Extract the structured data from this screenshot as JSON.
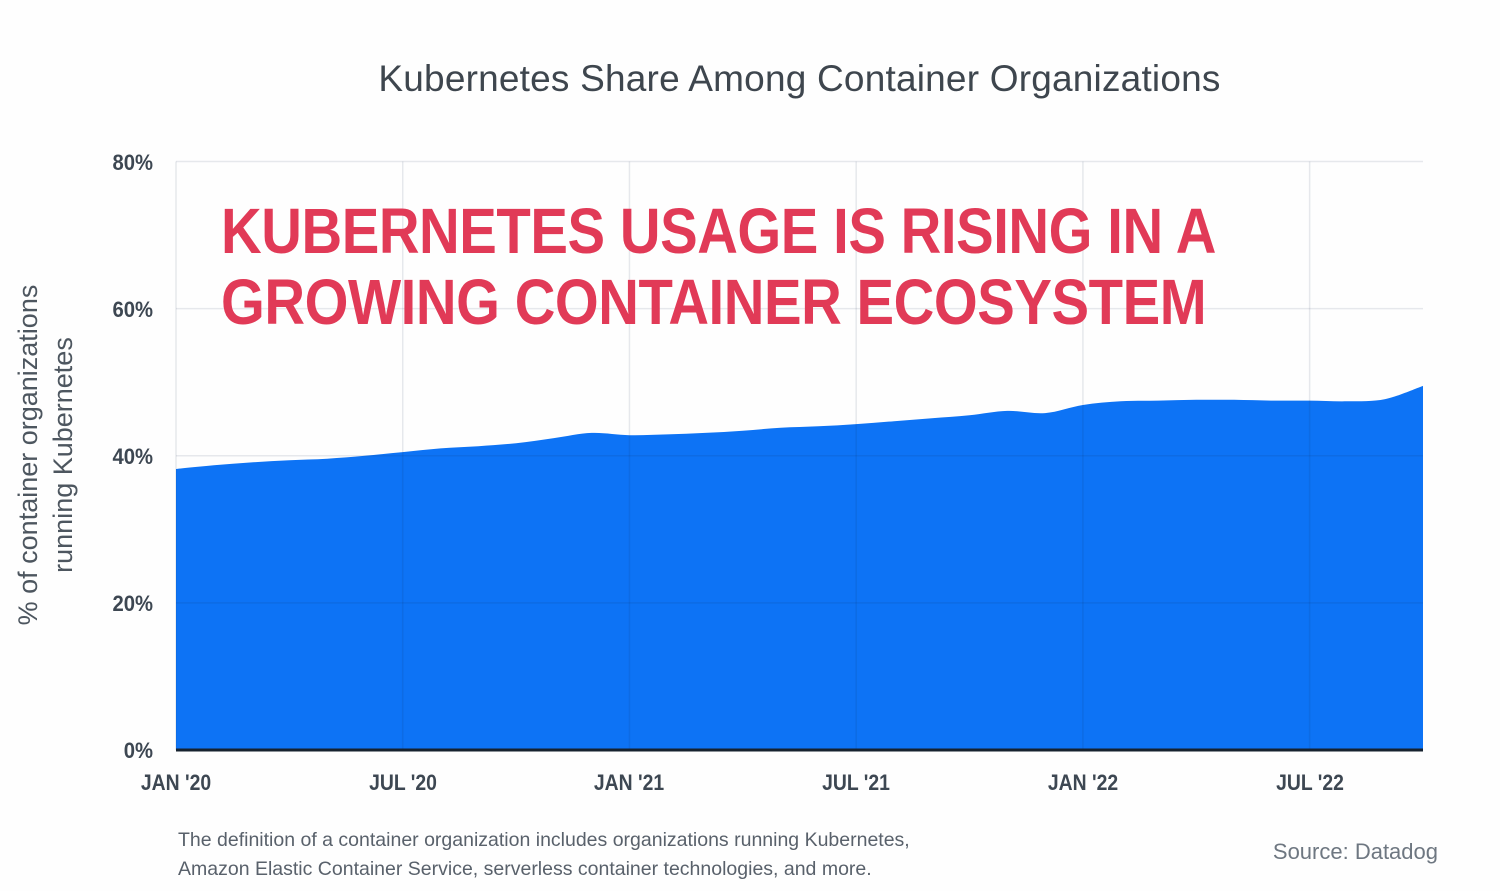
{
  "title": "Kubernetes Share Among Container Organizations",
  "overlay": {
    "line1": "KUBERNETES USAGE IS RISING IN A",
    "line2": "GROWING CONTAINER ECOSYSTEM",
    "color": "#e13a57"
  },
  "footnote": {
    "line1": "The definition of a container organization includes organizations running Kubernetes,",
    "line2": "Amazon Elastic Container Service, serverless container technologies, and more."
  },
  "source": "Source: Datadog",
  "chart_data": {
    "type": "area",
    "title": "Kubernetes Share Among Container Organizations",
    "ylabel_line1": "% of container organizations",
    "ylabel_line2": "running Kubernetes",
    "xlabel": "",
    "ylim": [
      0,
      80
    ],
    "grid": true,
    "legend": "none",
    "area_color": "#0d73f5",
    "grid_color": "rgba(23,43,77,0.10)",
    "baseline_color": "#16222f",
    "y_ticks": [
      {
        "label": "0%",
        "value": 0
      },
      {
        "label": "20%",
        "value": 20
      },
      {
        "label": "40%",
        "value": 40
      },
      {
        "label": "60%",
        "value": 60
      },
      {
        "label": "80%",
        "value": 80
      }
    ],
    "x_ticks": [
      {
        "label": "JAN '20",
        "index": 0
      },
      {
        "label": "JUL '20",
        "index": 6
      },
      {
        "label": "JAN '21",
        "index": 12
      },
      {
        "label": "JUL '21",
        "index": 18
      },
      {
        "label": "JAN '22",
        "index": 24
      },
      {
        "label": "JUL '22",
        "index": 30
      }
    ],
    "x": [
      "Jan '20",
      "Feb '20",
      "Mar '20",
      "Apr '20",
      "May '20",
      "Jun '20",
      "Jul '20",
      "Aug '20",
      "Sep '20",
      "Oct '20",
      "Nov '20",
      "Dec '20",
      "Jan '21",
      "Feb '21",
      "Mar '21",
      "Apr '21",
      "May '21",
      "Jun '21",
      "Jul '21",
      "Aug '21",
      "Sep '21",
      "Oct '21",
      "Nov '21",
      "Dec '21",
      "Jan '22",
      "Feb '22",
      "Mar '22",
      "Apr '22",
      "May '22",
      "Jun '22",
      "Jul '22",
      "Aug '22",
      "Sep '22",
      "Oct '22"
    ],
    "values": [
      38.2,
      38.7,
      39.1,
      39.4,
      39.6,
      40.0,
      40.5,
      41.0,
      41.3,
      41.7,
      42.4,
      43.1,
      42.8,
      42.9,
      43.1,
      43.4,
      43.8,
      44.0,
      44.3,
      44.7,
      45.1,
      45.5,
      46.1,
      45.8,
      46.9,
      47.4,
      47.5,
      47.6,
      47.6,
      47.5,
      47.5,
      47.4,
      47.7,
      49.5
    ]
  }
}
